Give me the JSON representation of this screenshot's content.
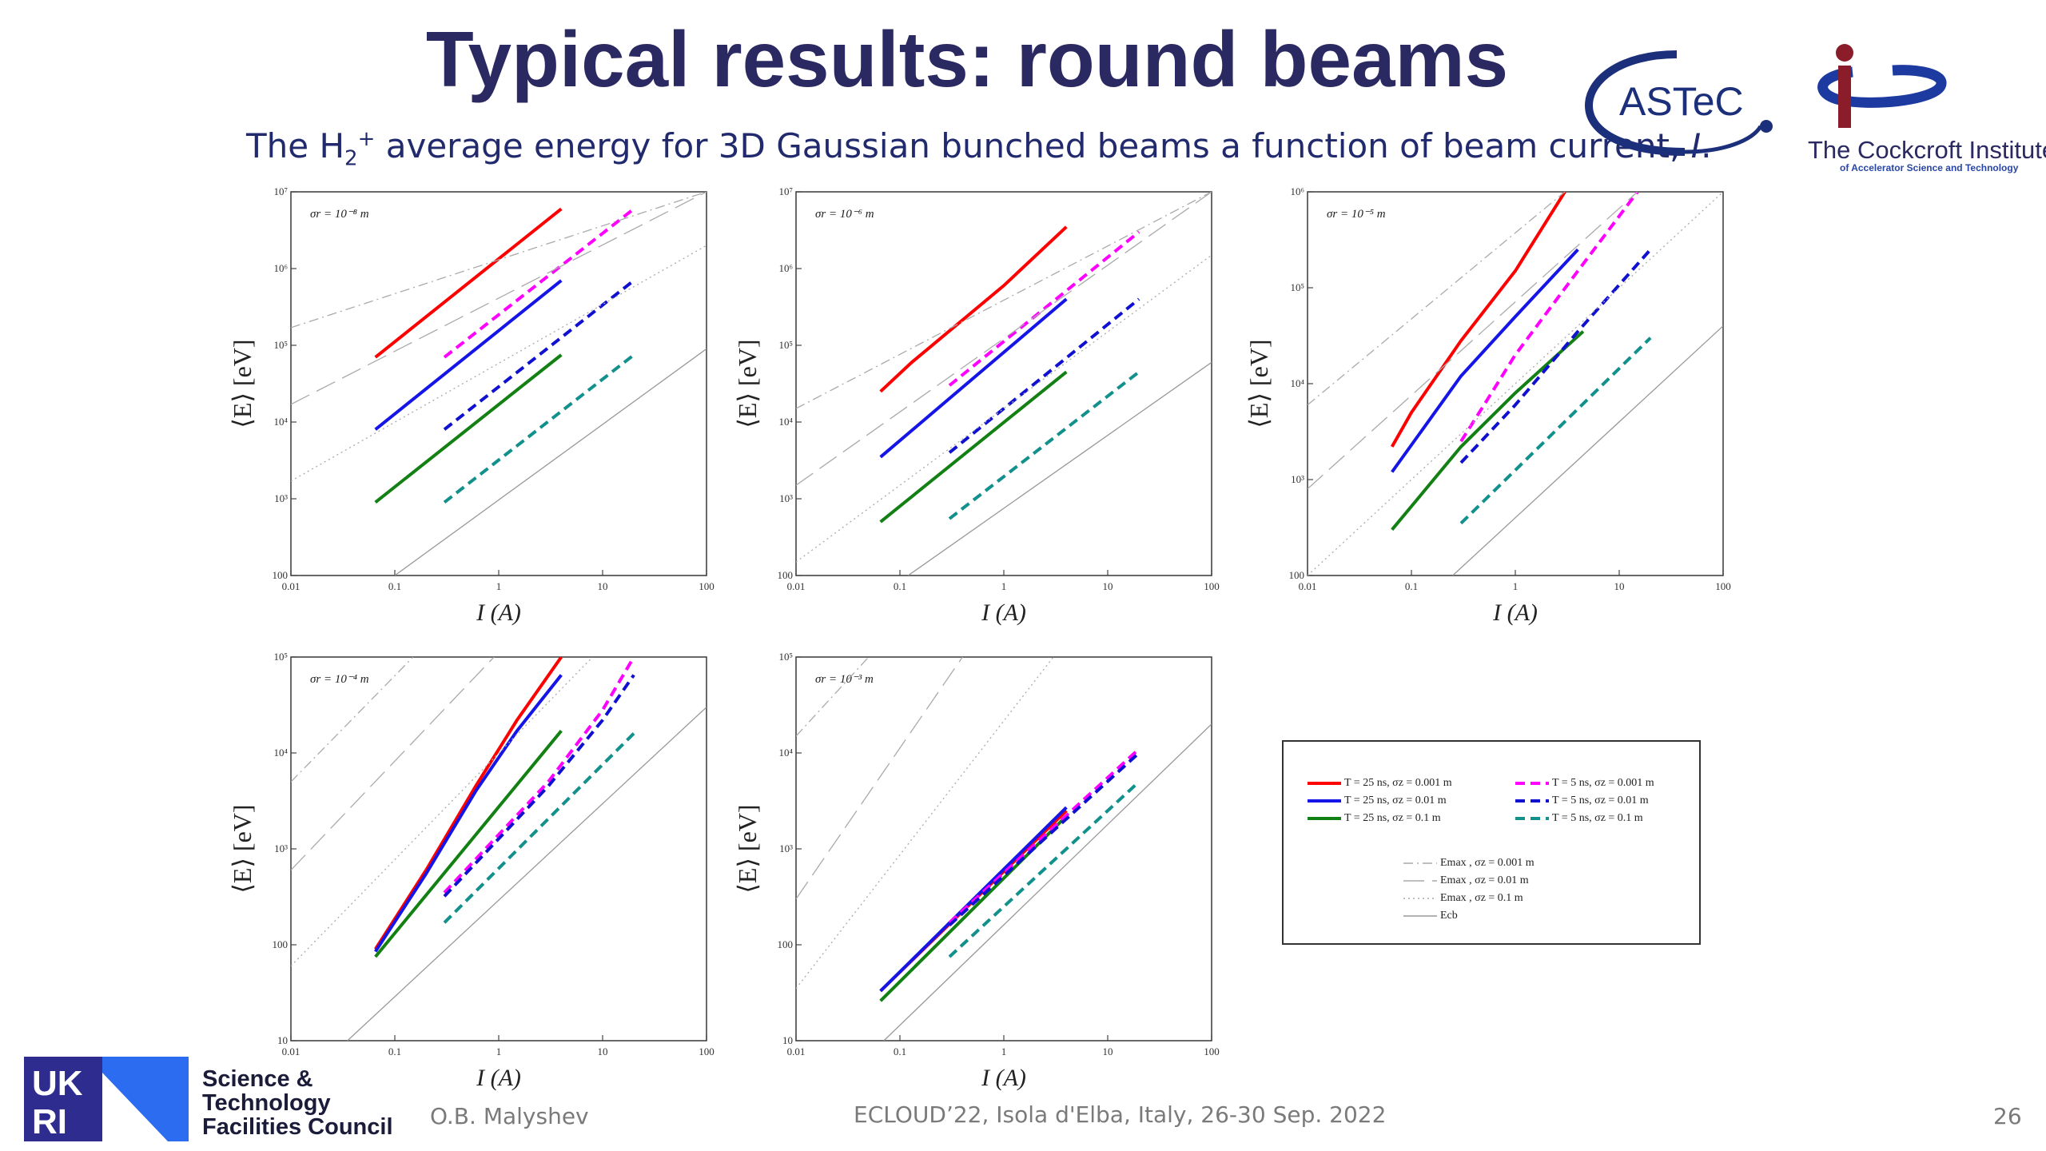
{
  "slide": {
    "title": "Typical results: round beams",
    "subtitle_pre": "The H",
    "subtitle_sub": "2",
    "subtitle_sup": "+",
    "subtitle_post": " average energy for 3D Gaussian bunched beams a function of beam current, ",
    "subtitle_var": "I",
    "subtitle_end": "."
  },
  "logos": {
    "astec": "ASTeC",
    "cockcroft_name": "The Cockcroft Institute",
    "cockcroft_sub": "of Accelerator Science and Technology",
    "council_line1": "Science &",
    "council_line2": "Technology",
    "council_line3": "Facilities Council"
  },
  "footer": {
    "author": "O.B. Malyshev",
    "conference": "ECLOUD’22, Isola d'Elba, Italy, 26-30 Sep. 2022",
    "page": "26"
  },
  "colors": {
    "title": "#2b2962",
    "subtitle": "#222a6e",
    "red": "#ff0000",
    "blue": "#1515e8",
    "green": "#128012",
    "magenta": "#ff00ff",
    "navy": "#1010d0",
    "teal": "#12908c"
  },
  "legend": [
    {
      "label": "T = 25 ns, σz = 0.001 m",
      "color": "#ff0000",
      "dash": "solid"
    },
    {
      "label": "T = 5 ns, σz = 0.001 m",
      "color": "#ff00ff",
      "dash": "dashed"
    },
    {
      "label": "T = 25 ns, σz = 0.01 m",
      "color": "#1515e8",
      "dash": "solid"
    },
    {
      "label": "T = 5 ns, σz = 0.01 m",
      "color": "#1010d0",
      "dash": "dashed"
    },
    {
      "label": "T = 25 ns, σz = 0.1 m",
      "color": "#128012",
      "dash": "solid"
    },
    {
      "label": "T = 5 ns, σz = 0.1 m",
      "color": "#12908c",
      "dash": "dashed"
    },
    {
      "label": "Emax , σz = 0.001 m",
      "color": "#aaaaaa",
      "dash": "dashdot"
    },
    {
      "label": "Emax , σz = 0.01 m",
      "color": "#aaaaaa",
      "dash": "longdash"
    },
    {
      "label": "Emax , σz = 0.1 m",
      "color": "#aaaaaa",
      "dash": "dotted"
    },
    {
      "label": "Ecb",
      "color": "#999999",
      "dash": "solid"
    }
  ],
  "chart_data": [
    {
      "type": "line",
      "annotation": "σr = 10⁻⁸ m",
      "xlabel": "I (A)",
      "ylabel": "⟨E⟩ [eV]",
      "xscale": "log",
      "yscale": "log",
      "xlim": [
        0.01,
        100
      ],
      "ylim": [
        100,
        10000000
      ],
      "xticks": [
        "0.01",
        "0.1",
        "1",
        "10",
        "100"
      ],
      "yticks": [
        "100",
        "10³",
        "10⁴",
        "10⁵",
        "10⁶",
        "10⁷"
      ],
      "series": [
        {
          "color": "#ff0000",
          "dash": "solid",
          "x": [
            0.065,
            4.0
          ],
          "y": [
            70000,
            6000000
          ]
        },
        {
          "color": "#1515e8",
          "dash": "solid",
          "x": [
            0.065,
            4.0
          ],
          "y": [
            8000,
            700000
          ]
        },
        {
          "color": "#128012",
          "dash": "solid",
          "x": [
            0.065,
            4.0
          ],
          "y": [
            900,
            75000
          ]
        },
        {
          "color": "#ff00ff",
          "dash": "dashed",
          "x": [
            0.3,
            20
          ],
          "y": [
            70000,
            6000000
          ]
        },
        {
          "color": "#1010d0",
          "dash": "dashed",
          "x": [
            0.3,
            20
          ],
          "y": [
            8000,
            700000
          ]
        },
        {
          "color": "#12908c",
          "dash": "dashed",
          "x": [
            0.3,
            20
          ],
          "y": [
            900,
            75000
          ]
        },
        {
          "color": "#aaaaaa",
          "dash": "dashdot",
          "x": [
            0.01,
            100
          ],
          "y": [
            170000,
            10000000
          ]
        },
        {
          "color": "#aaaaaa",
          "dash": "longdash",
          "x": [
            0.01,
            100
          ],
          "y": [
            17000,
            10000000
          ]
        },
        {
          "color": "#aaaaaa",
          "dash": "dotted",
          "x": [
            0.01,
            100
          ],
          "y": [
            1700,
            2000000
          ]
        },
        {
          "color": "#999999",
          "dash": "solid",
          "x": [
            0.1,
            100
          ],
          "y": [
            100,
            90000
          ]
        }
      ]
    },
    {
      "type": "line",
      "annotation": "σr = 10⁻⁶ m",
      "xlabel": "I (A)",
      "ylabel": "⟨E⟩ [eV]",
      "xscale": "log",
      "yscale": "log",
      "xlim": [
        0.01,
        100
      ],
      "ylim": [
        100,
        10000000
      ],
      "xticks": [
        "0.01",
        "0.1",
        "1",
        "10",
        "100"
      ],
      "yticks": [
        "100",
        "10³",
        "10⁴",
        "10⁵",
        "10⁶",
        "10⁷"
      ],
      "series": [
        {
          "color": "#ff0000",
          "dash": "solid",
          "x": [
            0.065,
            0.13,
            1.0,
            4.0
          ],
          "y": [
            25000,
            60000,
            600000,
            3500000
          ]
        },
        {
          "color": "#1515e8",
          "dash": "solid",
          "x": [
            0.065,
            4.0
          ],
          "y": [
            3500,
            400000
          ]
        },
        {
          "color": "#128012",
          "dash": "solid",
          "x": [
            0.065,
            4.0
          ],
          "y": [
            500,
            45000
          ]
        },
        {
          "color": "#ff00ff",
          "dash": "dashed",
          "x": [
            0.3,
            20
          ],
          "y": [
            30000,
            3000000
          ]
        },
        {
          "color": "#1010d0",
          "dash": "dashed",
          "x": [
            0.3,
            20
          ],
          "y": [
            4000,
            400000
          ]
        },
        {
          "color": "#12908c",
          "dash": "dashed",
          "x": [
            0.3,
            20
          ],
          "y": [
            550,
            45000
          ]
        },
        {
          "color": "#aaaaaa",
          "dash": "dashdot",
          "x": [
            0.01,
            100
          ],
          "y": [
            15000,
            10000000
          ]
        },
        {
          "color": "#aaaaaa",
          "dash": "longdash",
          "x": [
            0.01,
            100
          ],
          "y": [
            1500,
            10000000
          ]
        },
        {
          "color": "#aaaaaa",
          "dash": "dotted",
          "x": [
            0.01,
            100
          ],
          "y": [
            150,
            1500000
          ]
        },
        {
          "color": "#999999",
          "dash": "solid",
          "x": [
            0.12,
            100
          ],
          "y": [
            100,
            60000
          ]
        }
      ]
    },
    {
      "type": "line",
      "annotation": "σr = 10⁻⁵ m",
      "xlabel": "I (A)",
      "ylabel": "⟨E⟩ [eV]",
      "xscale": "log",
      "yscale": "log",
      "xlim": [
        0.01,
        100
      ],
      "ylim": [
        100,
        1000000
      ],
      "xticks": [
        "0.01",
        "0.1",
        "1",
        "10",
        "100"
      ],
      "yticks": [
        "100",
        "10³",
        "10⁴",
        "10⁵",
        "10⁶"
      ],
      "series": [
        {
          "color": "#ff0000",
          "dash": "solid",
          "x": [
            0.065,
            0.1,
            0.3,
            1.0,
            3.0
          ],
          "y": [
            2200,
            5000,
            28000,
            150000,
            1000000
          ]
        },
        {
          "color": "#1515e8",
          "dash": "solid",
          "x": [
            0.065,
            0.3,
            1.0,
            4.0
          ],
          "y": [
            1200,
            12000,
            50000,
            250000
          ]
        },
        {
          "color": "#128012",
          "dash": "solid",
          "x": [
            0.065,
            0.3,
            1.0,
            4.5
          ],
          "y": [
            300,
            2200,
            8000,
            35000
          ]
        },
        {
          "color": "#ff00ff",
          "dash": "dashed",
          "x": [
            0.3,
            0.5,
            1.0,
            4.0,
            15
          ],
          "y": [
            2500,
            6000,
            20000,
            150000,
            1000000
          ]
        },
        {
          "color": "#1010d0",
          "dash": "dashed",
          "x": [
            0.3,
            1.0,
            4.0,
            20
          ],
          "y": [
            1500,
            6000,
            35000,
            250000
          ]
        },
        {
          "color": "#12908c",
          "dash": "dashed",
          "x": [
            0.3,
            20
          ],
          "y": [
            350,
            30000
          ]
        },
        {
          "color": "#aaaaaa",
          "dash": "dashdot",
          "x": [
            0.01,
            3.0
          ],
          "y": [
            6000,
            1000000
          ]
        },
        {
          "color": "#aaaaaa",
          "dash": "longdash",
          "x": [
            0.01,
            15
          ],
          "y": [
            800,
            1000000
          ]
        },
        {
          "color": "#aaaaaa",
          "dash": "dotted",
          "x": [
            0.01,
            100
          ],
          "y": [
            100,
            1000000
          ]
        },
        {
          "color": "#999999",
          "dash": "solid",
          "x": [
            0.25,
            100
          ],
          "y": [
            100,
            40000
          ]
        }
      ]
    },
    {
      "type": "line",
      "annotation": "σr = 10⁻⁴ m",
      "xlabel": "I (A)",
      "ylabel": "⟨E⟩ [eV]",
      "xscale": "log",
      "yscale": "log",
      "xlim": [
        0.01,
        100
      ],
      "ylim": [
        10,
        100000
      ],
      "xticks": [
        "0.01",
        "0.1",
        "1",
        "10",
        "100"
      ],
      "yticks": [
        "10",
        "100",
        "10³",
        "10⁴",
        "10⁵"
      ],
      "series": [
        {
          "color": "#ff0000",
          "dash": "solid",
          "x": [
            0.065,
            0.2,
            0.6,
            1.5,
            4.0
          ],
          "y": [
            90,
            600,
            4500,
            22000,
            100000
          ]
        },
        {
          "color": "#1515e8",
          "dash": "solid",
          "x": [
            0.065,
            0.2,
            0.6,
            1.5,
            4.0
          ],
          "y": [
            85,
            550,
            4000,
            17000,
            65000
          ]
        },
        {
          "color": "#128012",
          "dash": "solid",
          "x": [
            0.065,
            4.0
          ],
          "y": [
            75,
            17000
          ]
        },
        {
          "color": "#ff00ff",
          "dash": "dashed",
          "x": [
            0.3,
            3.0,
            10,
            20
          ],
          "y": [
            350,
            5000,
            28000,
            100000
          ]
        },
        {
          "color": "#1010d0",
          "dash": "dashed",
          "x": [
            0.3,
            3.0,
            10,
            20
          ],
          "y": [
            320,
            4500,
            22000,
            65000
          ]
        },
        {
          "color": "#12908c",
          "dash": "dashed",
          "x": [
            0.3,
            20
          ],
          "y": [
            170,
            16000
          ]
        },
        {
          "color": "#aaaaaa",
          "dash": "dashdot",
          "x": [
            0.01,
            0.15
          ],
          "y": [
            5000,
            100000
          ]
        },
        {
          "color": "#aaaaaa",
          "dash": "longdash",
          "x": [
            0.01,
            0.9
          ],
          "y": [
            600,
            100000
          ]
        },
        {
          "color": "#aaaaaa",
          "dash": "dotted",
          "x": [
            0.01,
            8.0
          ],
          "y": [
            60,
            100000
          ]
        },
        {
          "color": "#999999",
          "dash": "solid",
          "x": [
            0.035,
            100
          ],
          "y": [
            10,
            30000
          ]
        }
      ]
    },
    {
      "type": "line",
      "annotation": "σr = 10⁻³ m",
      "xlabel": "I (A)",
      "ylabel": "⟨E⟩ [eV]",
      "xscale": "log",
      "yscale": "log",
      "xlim": [
        0.01,
        100
      ],
      "ylim": [
        10,
        100000
      ],
      "xticks": [
        "0.01",
        "0.1",
        "1",
        "10",
        "100"
      ],
      "yticks": [
        "10",
        "100",
        "10³",
        "10⁴",
        "10⁵"
      ],
      "series": [
        {
          "color": "#ff0000",
          "dash": "solid",
          "x": [
            0.065,
            4.0
          ],
          "y": [
            33,
            2500
          ]
        },
        {
          "color": "#1515e8",
          "dash": "solid",
          "x": [
            0.065,
            4.0
          ],
          "y": [
            33,
            2700
          ]
        },
        {
          "color": "#128012",
          "dash": "solid",
          "x": [
            0.065,
            4.0
          ],
          "y": [
            26,
            2200
          ]
        },
        {
          "color": "#ff00ff",
          "dash": "dashed",
          "x": [
            0.3,
            20
          ],
          "y": [
            170,
            11000
          ]
        },
        {
          "color": "#1010d0",
          "dash": "dashed",
          "x": [
            0.3,
            20
          ],
          "y": [
            160,
            10000
          ]
        },
        {
          "color": "#12908c",
          "dash": "dashed",
          "x": [
            0.3,
            20
          ],
          "y": [
            75,
            5000
          ]
        },
        {
          "color": "#aaaaaa",
          "dash": "dashdot",
          "x": [
            0.01,
            0.05
          ],
          "y": [
            15000,
            100000
          ]
        },
        {
          "color": "#aaaaaa",
          "dash": "longdash",
          "x": [
            0.01,
            0.4
          ],
          "y": [
            300,
            100000
          ]
        },
        {
          "color": "#aaaaaa",
          "dash": "dotted",
          "x": [
            0.01,
            3.0
          ],
          "y": [
            35,
            100000
          ]
        },
        {
          "color": "#999999",
          "dash": "solid",
          "x": [
            0.07,
            100
          ],
          "y": [
            10,
            20000
          ]
        }
      ]
    }
  ]
}
